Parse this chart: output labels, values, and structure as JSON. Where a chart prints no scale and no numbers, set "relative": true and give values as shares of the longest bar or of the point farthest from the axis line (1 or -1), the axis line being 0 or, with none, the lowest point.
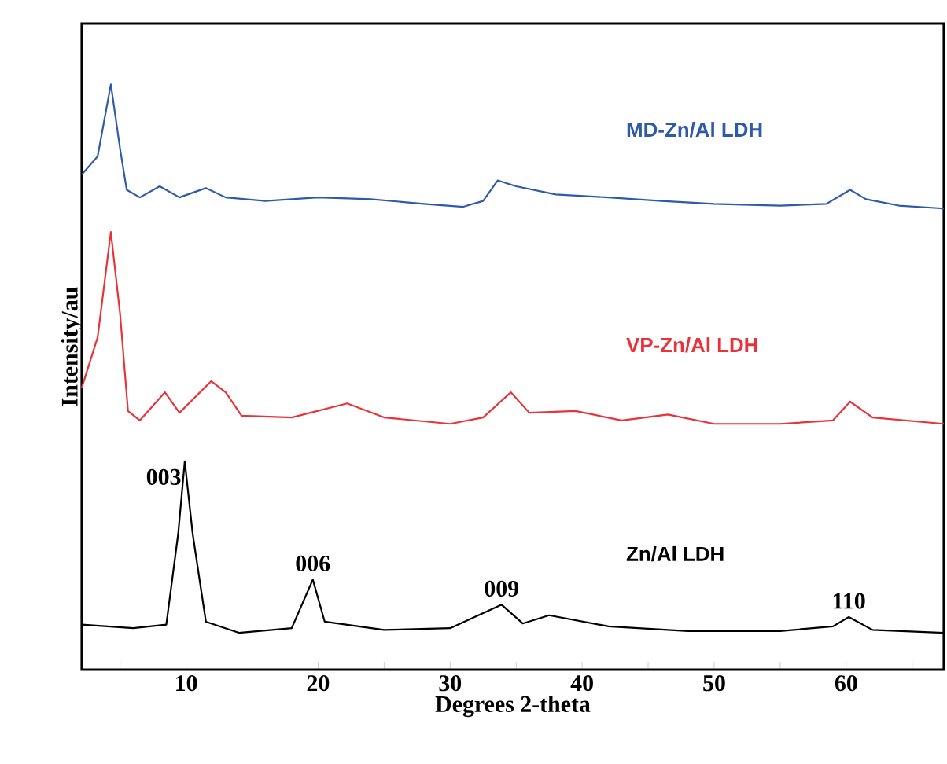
{
  "chart_data": {
    "type": "line",
    "relative": true,
    "xlabel": "Degrees 2-theta",
    "ylabel": "Intensity/au",
    "xlim": [
      2.1,
      67.4
    ],
    "xticks": [
      {
        "value": 5,
        "label": null
      },
      10,
      {
        "value": 15,
        "label": null
      },
      20,
      {
        "value": 25,
        "label": null
      },
      30,
      {
        "value": 35,
        "label": null
      },
      40,
      {
        "value": 45,
        "label": null
      },
      50,
      {
        "value": 55,
        "label": null
      },
      60,
      {
        "value": 65,
        "label": null
      }
    ],
    "legend": false,
    "grid": false,
    "marker": "none",
    "line_style": "solid",
    "annotations": [
      {
        "text": "003",
        "x": 9.9,
        "y": 0.356
      },
      {
        "text": "006",
        "x": 19.6,
        "y": 0.154
      },
      {
        "text": "009",
        "x": 33.9,
        "y": 0.111
      },
      {
        "text": "110",
        "x": 60.2,
        "y": 0.09
      }
    ],
    "series": [
      {
        "name": "MD-Zn/Al  LDH",
        "color": "#2f5aa8",
        "x": [
          2.1,
          3.3,
          4.3,
          5.0,
          5.5,
          6.5,
          8.0,
          9.5,
          11.5,
          13,
          16,
          20,
          24,
          28,
          31,
          32.5,
          33.6,
          35,
          38,
          42,
          46,
          50,
          55,
          58.5,
          60.3,
          61.5,
          64,
          67.4
        ],
        "values": [
          0.846,
          0.877,
          1.0,
          0.89,
          0.82,
          0.807,
          0.826,
          0.807,
          0.823,
          0.807,
          0.801,
          0.807,
          0.804,
          0.796,
          0.791,
          0.801,
          0.836,
          0.826,
          0.812,
          0.807,
          0.801,
          0.796,
          0.793,
          0.796,
          0.82,
          0.804,
          0.793,
          0.788
        ]
      },
      {
        "name": "VP-Zn/Al  LDH",
        "color": "#e8333a",
        "x": [
          2.1,
          3.3,
          4.3,
          5.0,
          5.6,
          6.5,
          8.4,
          9.5,
          11.9,
          13,
          14.2,
          18,
          22.2,
          25,
          30,
          32.5,
          34.6,
          36,
          39.5,
          43,
          46.5,
          50,
          55,
          59,
          60.3,
          62,
          67.4
        ],
        "values": [
          0.482,
          0.568,
          0.748,
          0.608,
          0.442,
          0.426,
          0.474,
          0.439,
          0.493,
          0.474,
          0.434,
          0.431,
          0.455,
          0.431,
          0.42,
          0.431,
          0.474,
          0.439,
          0.442,
          0.426,
          0.436,
          0.42,
          0.42,
          0.426,
          0.458,
          0.431,
          0.42
        ]
      },
      {
        "name": "Zn/Al  LDH",
        "color": "#000000",
        "x": [
          2.1,
          6,
          8.5,
          9.4,
          9.9,
          10.5,
          11.5,
          14,
          18,
          19.6,
          20.5,
          25,
          30,
          33.9,
          35.5,
          37.5,
          42,
          48,
          55,
          59,
          60.2,
          62,
          67.4
        ],
        "values": [
          0.077,
          0.071,
          0.077,
          0.232,
          0.356,
          0.232,
          0.082,
          0.063,
          0.071,
          0.154,
          0.082,
          0.068,
          0.071,
          0.111,
          0.079,
          0.093,
          0.074,
          0.066,
          0.066,
          0.074,
          0.09,
          0.068,
          0.063
        ]
      }
    ]
  }
}
